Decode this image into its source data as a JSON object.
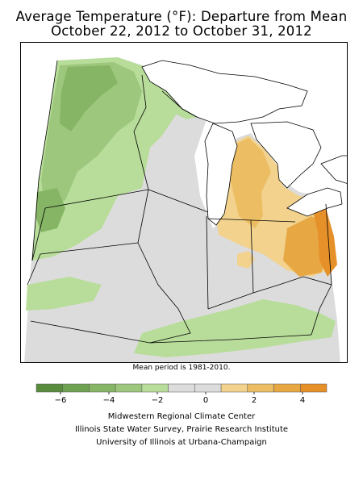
{
  "title_line1": "Average Temperature (°F): Departure from Mean",
  "title_line2": "October 22, 2012 to October 31, 2012",
  "mean_period": "Mean period is 1981-2010.",
  "legend": {
    "colors": [
      "#5a8c3e",
      "#6fa250",
      "#86b565",
      "#9dc77c",
      "#b8dd9a",
      "#dcdcdc",
      "#dcdcdc",
      "#f2d28c",
      "#ecbd62",
      "#e7a844",
      "#e6902a"
    ],
    "tick_values": [
      -6,
      -4,
      -2,
      0,
      2,
      4
    ],
    "tick_labels": [
      "−6",
      "−4",
      "−2",
      "0",
      "2",
      "4"
    ]
  },
  "credits": [
    "Midwestern Regional Climate Center",
    "Illinois State Water Survey, Prairie Research Institute",
    "University of Illinois at Urbana-Champaign"
  ],
  "map_colors": {
    "water": "#ffffff",
    "neutral": "#dcdcdc",
    "cool_light": "#b8dd9a",
    "cool_mid": "#9dc77c",
    "cool_dark": "#86b565",
    "warm_light": "#f2d28c",
    "warm_mid": "#ecbd62",
    "warm_dark": "#e7a844",
    "warm_darkest": "#e6902a"
  }
}
